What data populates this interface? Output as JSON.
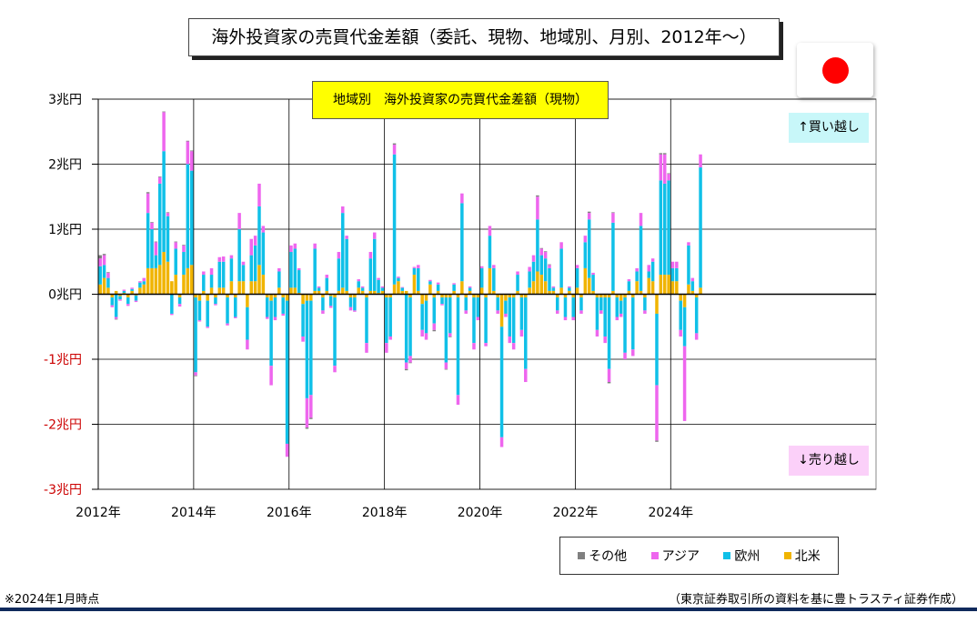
{
  "page": {
    "title": "海外投資家の売買代金差額（委託、現物、地域別、月別、2012年～）",
    "footnote": "※2024年1月時点",
    "source": "（東京証券取引所の資料を基に豊トラスティ証券作成）",
    "flag_icon": "japan-flag-icon"
  },
  "chart_data": {
    "type": "bar",
    "stacked": true,
    "title": "地域別　海外投資家の売買代金差額（現物）",
    "ylim": [
      -3,
      3
    ],
    "y_ticks": [
      {
        "value": 3,
        "label": "3兆円"
      },
      {
        "value": 2,
        "label": "2兆円"
      },
      {
        "value": 1,
        "label": "1兆円"
      },
      {
        "value": 0,
        "label": "0兆円"
      },
      {
        "value": -1,
        "label": "-1兆円"
      },
      {
        "value": -2,
        "label": "-2兆円"
      },
      {
        "value": -3,
        "label": "-3兆円"
      }
    ],
    "x_start": "2012-01",
    "x_end": "2025-12",
    "x_ticks": [
      "2012年",
      "2014年",
      "2016年",
      "2018年",
      "2020年",
      "2022年",
      "2024年"
    ],
    "grid": true,
    "legend_position": "bottom-right",
    "annotations": {
      "buy": "↑買い越し",
      "sell": "↓売り越し"
    },
    "negative_label_color": "#cc0000",
    "series_order": [
      "北米",
      "欧州",
      "アジア",
      "その他"
    ],
    "series": [
      {
        "name": "その他",
        "color": "#808080"
      },
      {
        "name": "アジア",
        "color": "#ee66ee"
      },
      {
        "name": "欧州",
        "color": "#10c0e8"
      },
      {
        "name": "北米",
        "color": "#f0b400"
      }
    ],
    "values": [
      [
        0.15,
        0.28,
        0.12,
        0.05
      ],
      [
        0.25,
        0.2,
        0.15,
        0.02
      ],
      [
        0.1,
        0.15,
        0.08,
        0.01
      ],
      [
        -0.05,
        -0.12,
        -0.03,
        0
      ],
      [
        0.05,
        -0.35,
        -0.03,
        -0.01
      ],
      [
        -0.03,
        -0.05,
        -0.02,
        0
      ],
      [
        0.02,
        0.03,
        0.02,
        0
      ],
      [
        -0.05,
        -0.1,
        -0.03,
        0
      ],
      [
        0.05,
        0.03,
        0.02,
        0
      ],
      [
        -0.02,
        -0.08,
        -0.02,
        0
      ],
      [
        0.1,
        0.08,
        0.02,
        0
      ],
      [
        0.15,
        0.05,
        0.05,
        0
      ],
      [
        0.4,
        0.85,
        0.3,
        0.02
      ],
      [
        0.4,
        0.6,
        0.1,
        0.01
      ],
      [
        0.4,
        0.2,
        0.2,
        0.01
      ],
      [
        0.45,
        1.25,
        0.1,
        0.01
      ],
      [
        0.65,
        1.55,
        0.6,
        0.01
      ],
      [
        0.5,
        0.7,
        0.05,
        0.01
      ],
      [
        0.2,
        -0.3,
        -0.02,
        0
      ],
      [
        0.3,
        0.4,
        0.1,
        0.01
      ],
      [
        -0.05,
        -0.1,
        -0.04,
        0
      ],
      [
        0.3,
        0.35,
        0.1,
        0.01
      ],
      [
        0.4,
        1.6,
        0.35,
        0.01
      ],
      [
        0.45,
        1.45,
        0.3,
        0.01
      ],
      [
        -0.05,
        -1.15,
        -0.05,
        -0.01
      ],
      [
        -0.1,
        -0.3,
        -0.02,
        0
      ],
      [
        0.05,
        0.25,
        0.05,
        0
      ],
      [
        -0.1,
        -0.4,
        -0.02,
        0
      ],
      [
        0.1,
        0.2,
        0.1,
        0
      ],
      [
        -0.05,
        -0.1,
        -0.02,
        0
      ],
      [
        0.1,
        0.4,
        0.07,
        0
      ],
      [
        0.1,
        0.4,
        0.08,
        0
      ],
      [
        -0.05,
        -0.4,
        -0.03,
        0
      ],
      [
        0.2,
        0.35,
        0.05,
        0
      ],
      [
        -0.05,
        -0.3,
        -0.02,
        0
      ],
      [
        0.2,
        0.8,
        0.25,
        0
      ],
      [
        0.2,
        0.25,
        0.05,
        0
      ],
      [
        -0.2,
        -0.5,
        -0.15,
        0
      ],
      [
        0.2,
        0.4,
        0.25,
        0
      ],
      [
        0.2,
        0.55,
        0.15,
        0
      ],
      [
        0.45,
        0.9,
        0.35,
        0
      ],
      [
        0.3,
        0.65,
        0.1,
        0
      ],
      [
        -0.05,
        -0.3,
        -0.03,
        0
      ],
      [
        -0.1,
        -1.0,
        -0.3,
        0
      ],
      [
        -0.05,
        -0.3,
        -0.05,
        0
      ],
      [
        0.1,
        0.25,
        0.05,
        0
      ],
      [
        -0.05,
        -0.25,
        -0.03,
        0
      ],
      [
        -0.1,
        -2.2,
        -0.2,
        0
      ],
      [
        0.1,
        0.55,
        0.1,
        0
      ],
      [
        0.1,
        0.6,
        0.08,
        0
      ],
      [
        0.02,
        0.35,
        0.03,
        0
      ],
      [
        -0.15,
        -0.5,
        -0.08,
        0
      ],
      [
        -0.1,
        -1.5,
        -0.45,
        -0.02
      ],
      [
        -0.1,
        -1.45,
        -0.35,
        -0.02
      ],
      [
        0.05,
        0.65,
        0.08,
        0
      ],
      [
        0.05,
        0.05,
        0.02,
        0
      ],
      [
        -0.05,
        -0.2,
        -0.05,
        0
      ],
      [
        0.05,
        0.2,
        0.05,
        0
      ],
      [
        -0.03,
        -0.15,
        -0.03,
        0
      ],
      [
        -0.05,
        -1.05,
        -0.1,
        0
      ],
      [
        0.05,
        0.5,
        0.1,
        0
      ],
      [
        0.1,
        1.15,
        0.1,
        0
      ],
      [
        0.05,
        0.8,
        0.05,
        0
      ],
      [
        -0.05,
        -0.15,
        -0.05,
        0
      ],
      [
        -0.05,
        -0.2,
        -0.02,
        0
      ],
      [
        0.1,
        0.1,
        0.03,
        0
      ],
      [
        0.05,
        0.05,
        0.02,
        0
      ],
      [
        -0.05,
        -0.7,
        -0.15,
        0
      ],
      [
        0.05,
        0.5,
        0.1,
        0
      ],
      [
        0.05,
        0.8,
        0.1,
        0
      ],
      [
        0.02,
        0.2,
        0.03,
        0
      ],
      [
        0.05,
        0.05,
        0.02,
        0
      ],
      [
        -0.05,
        -0.7,
        -0.15,
        0
      ],
      [
        -0.05,
        -0.6,
        -0.05,
        0
      ],
      [
        0.15,
        2.0,
        0.15,
        0.02
      ],
      [
        0.2,
        0.05,
        0.02,
        0
      ],
      [
        0.05,
        0.05,
        0.01,
        0
      ],
      [
        0.05,
        -1.05,
        -0.1,
        -0.02
      ],
      [
        -0.05,
        -0.9,
        -0.1,
        -0.01
      ],
      [
        0.3,
        0.1,
        0.02,
        0
      ],
      [
        0.05,
        0.35,
        0.05,
        0
      ],
      [
        -0.15,
        -0.4,
        -0.1,
        0
      ],
      [
        -0.1,
        -0.5,
        -0.1,
        0
      ],
      [
        0.15,
        0.05,
        0.02,
        0
      ],
      [
        -0.05,
        -0.4,
        -0.1,
        -0.02
      ],
      [
        0.05,
        0.1,
        0.03,
        0
      ],
      [
        -0.05,
        -0.1,
        -0.02,
        0
      ],
      [
        -0.05,
        -1.0,
        -0.1,
        -0.01
      ],
      [
        -0.05,
        -0.55,
        -0.05,
        -0.01
      ],
      [
        0.05,
        0.1,
        0.02,
        0
      ],
      [
        -0.05,
        -1.5,
        -0.15,
        0
      ],
      [
        0.2,
        1.2,
        0.15,
        0
      ],
      [
        -0.05,
        -0.2,
        -0.05,
        0
      ],
      [
        0.05,
        0.05,
        0.02,
        0
      ],
      [
        -0.05,
        -0.7,
        -0.1,
        0
      ],
      [
        -0.05,
        -0.3,
        -0.05,
        0
      ],
      [
        0.1,
        0.3,
        0.03,
        0
      ],
      [
        -0.05,
        -0.7,
        -0.05,
        0
      ],
      [
        0.4,
        0.5,
        0.15,
        0
      ],
      [
        0.05,
        0.35,
        0.05,
        0
      ],
      [
        -0.05,
        -0.2,
        -0.05,
        0
      ],
      [
        -0.5,
        -1.7,
        -0.15,
        0
      ],
      [
        -0.1,
        -0.2,
        -0.05,
        0
      ],
      [
        -0.05,
        -0.6,
        -0.1,
        0
      ],
      [
        -0.05,
        -0.7,
        -0.1,
        0
      ],
      [
        0.05,
        0.25,
        0.05,
        0
      ],
      [
        -0.05,
        -0.5,
        -0.1,
        0
      ],
      [
        -0.05,
        -1.1,
        -0.2,
        0
      ],
      [
        0.1,
        0.25,
        0.07,
        0
      ],
      [
        0.2,
        0.3,
        0.1,
        0
      ],
      [
        0.35,
        0.8,
        0.35,
        0.02
      ],
      [
        0.3,
        0.3,
        0.1,
        0.01
      ],
      [
        0.2,
        0.35,
        0.1,
        0.01
      ],
      [
        0.05,
        0.35,
        0.05,
        0.01
      ],
      [
        0.05,
        0.05,
        0.02,
        0
      ],
      [
        -0.05,
        -0.2,
        -0.05,
        0
      ],
      [
        0.1,
        0.6,
        0.1,
        0
      ],
      [
        -0.05,
        -0.3,
        -0.05,
        0
      ],
      [
        0.05,
        0.05,
        0.02,
        0
      ],
      [
        -0.05,
        -0.3,
        -0.05,
        0
      ],
      [
        0.1,
        0.3,
        0.05,
        0
      ],
      [
        -0.05,
        -0.2,
        -0.05,
        0
      ],
      [
        0.4,
        0.4,
        0.1,
        0
      ],
      [
        0.25,
        0.9,
        0.1,
        0.02
      ],
      [
        0.05,
        0.25,
        0.03,
        0
      ],
      [
        -0.05,
        -0.5,
        -0.1,
        0
      ],
      [
        -0.05,
        -0.2,
        -0.05,
        0
      ],
      [
        -0.05,
        -0.6,
        -0.1,
        0
      ],
      [
        -0.05,
        -1.1,
        -0.2,
        -0.02
      ],
      [
        0.05,
        1.05,
        0.15,
        0.01
      ],
      [
        -0.05,
        -0.3,
        -0.05,
        0
      ],
      [
        -0.1,
        -0.2,
        -0.05,
        0
      ],
      [
        -0.05,
        -0.85,
        -0.1,
        0
      ],
      [
        0.05,
        0.15,
        0.03,
        0
      ],
      [
        -0.05,
        -0.8,
        -0.1,
        0
      ],
      [
        0.2,
        0.15,
        0.05,
        0
      ],
      [
        0.05,
        1.0,
        0.2,
        0
      ],
      [
        -0.05,
        -0.2,
        -0.05,
        0
      ],
      [
        0.25,
        0.1,
        0.1,
        0
      ],
      [
        0.2,
        0.3,
        0.05,
        0
      ],
      [
        -0.3,
        -1.1,
        -0.85,
        -0.02
      ],
      [
        0.3,
        1.45,
        0.4,
        0.02
      ],
      [
        0.3,
        1.4,
        0.45,
        0.02
      ],
      [
        0.3,
        1.45,
        0.1,
        0.01
      ],
      [
        0.2,
        0.2,
        0.1,
        0
      ],
      [
        0.2,
        0.2,
        0.1,
        0
      ],
      [
        -0.1,
        -0.45,
        -0.1,
        0
      ],
      [
        -0.2,
        -0.6,
        -1.15,
        0
      ],
      [
        0.15,
        0.6,
        0.05,
        0
      ],
      [
        0.05,
        0.15,
        0.05,
        0
      ],
      [
        -0.05,
        -0.55,
        -0.1,
        0
      ],
      [
        0.1,
        1.85,
        0.2,
        0
      ]
    ]
  }
}
